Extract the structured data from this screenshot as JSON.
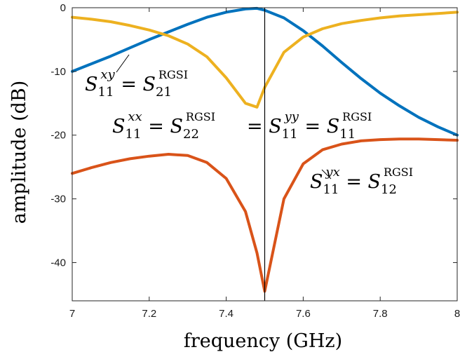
{
  "chart_data": {
    "type": "line",
    "xlabel": "frequency (GHz)",
    "ylabel": "amplitude (dB)",
    "xlim": [
      7,
      8
    ],
    "ylim": [
      -46,
      0
    ],
    "x_ticks": [
      "7",
      "7.2",
      "7.4",
      "7.6",
      "7.8",
      "8"
    ],
    "y_ticks": [
      "0",
      "-10",
      "-20",
      "-30",
      "-40"
    ],
    "grid": false,
    "vline_x": 7.5,
    "x": [
      7.0,
      7.05,
      7.1,
      7.15,
      7.2,
      7.25,
      7.3,
      7.35,
      7.4,
      7.45,
      7.48,
      7.5,
      7.55,
      7.6,
      7.65,
      7.7,
      7.75,
      7.8,
      7.85,
      7.9,
      7.95,
      8.0
    ],
    "series": [
      {
        "color": "#0072BD",
        "values": [
          -10.0,
          -8.8,
          -7.6,
          -6.3,
          -5.0,
          -3.8,
          -2.6,
          -1.5,
          -0.7,
          -0.2,
          -0.1,
          -0.4,
          -1.6,
          -3.6,
          -6.0,
          -8.6,
          -11.1,
          -13.4,
          -15.4,
          -17.2,
          -18.7,
          -20.0
        ]
      },
      {
        "color": "#EDB120",
        "values": [
          -1.5,
          -1.8,
          -2.2,
          -2.8,
          -3.5,
          -4.4,
          -5.7,
          -7.7,
          -11.0,
          -15.0,
          -15.6,
          -12.5,
          -7.0,
          -4.6,
          -3.3,
          -2.5,
          -2.0,
          -1.6,
          -1.3,
          -1.1,
          -0.9,
          -0.7
        ]
      },
      {
        "color": "#D95319",
        "values": [
          -26.0,
          -25.1,
          -24.3,
          -23.7,
          -23.3,
          -23.0,
          -23.2,
          -24.3,
          -26.8,
          -32.0,
          -38.5,
          -44.5,
          -30.0,
          -24.5,
          -22.3,
          -21.4,
          -20.9,
          -20.7,
          -20.6,
          -20.6,
          -20.7,
          -20.8
        ]
      }
    ],
    "annotations": [
      {
        "S": "S",
        "sub": "11",
        "sup": "xy",
        "eq": " = ",
        "S2": "S",
        "sub2": "21",
        "sup2": "RGSI"
      },
      {
        "S": "S",
        "sub": "11",
        "sup": "xx",
        "eq": " = ",
        "S2": "S",
        "sub2": "22",
        "sup2": "RGSI"
      },
      {
        "S": "S",
        "sub": "11",
        "sup": "yy",
        "eq": " = ",
        "S2": "S",
        "sub2": "11",
        "sup2": "RGSI",
        "lead": " = "
      },
      {
        "S": "S",
        "sub": "11",
        "sup": "yx",
        "eq": " = ",
        "S2": "S",
        "sub2": "12",
        "sup2": "RGSI"
      }
    ]
  }
}
